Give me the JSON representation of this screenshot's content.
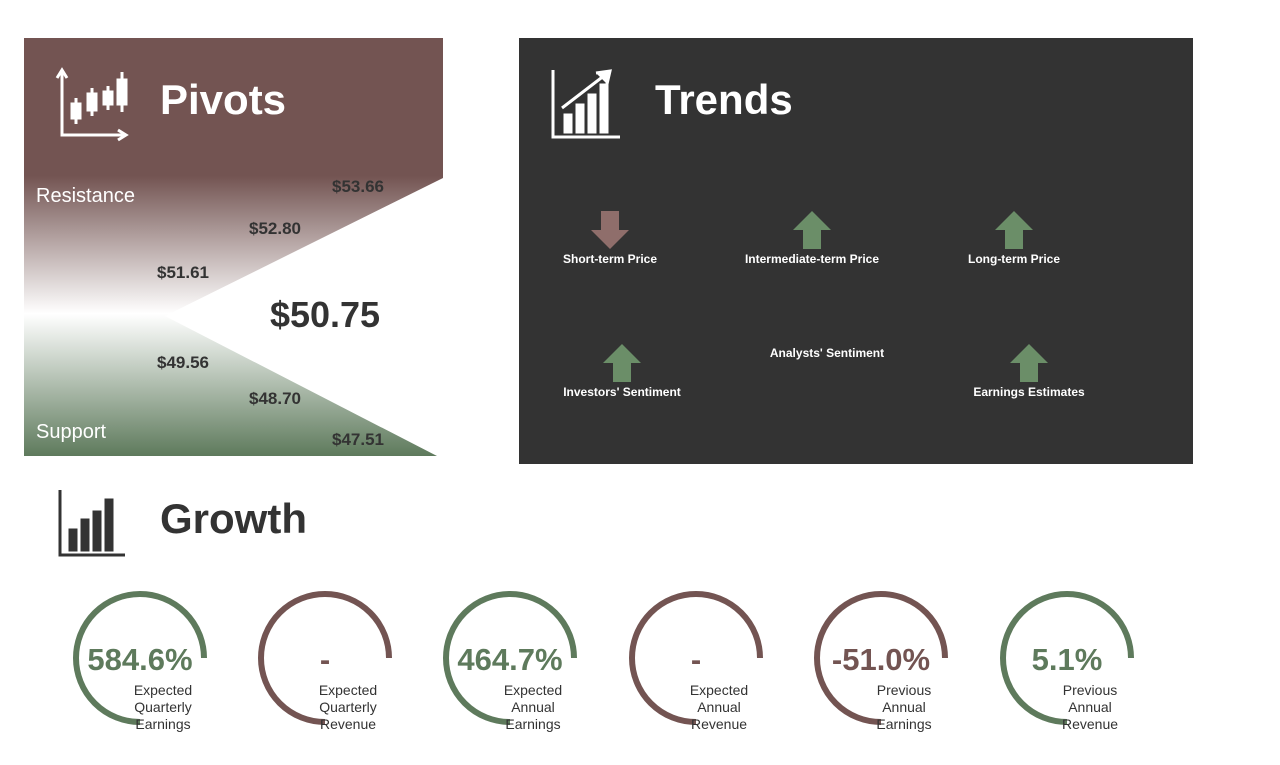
{
  "pivots": {
    "title": "Pivots",
    "resistance_label": "Resistance",
    "support_label": "Support",
    "resistance": [
      "$53.66",
      "$52.80",
      "$51.61"
    ],
    "current": "$50.75",
    "support": [
      "$49.56",
      "$48.70",
      "$47.51"
    ]
  },
  "trends": {
    "title": "Trends",
    "items": [
      {
        "label": "Short-term Price",
        "direction": "down"
      },
      {
        "label": "Intermediate-term Price",
        "direction": "up"
      },
      {
        "label": "Long-term Price",
        "direction": "up"
      },
      {
        "label": "Investors' Sentiment",
        "direction": "up"
      },
      {
        "label": "Analysts' Sentiment",
        "direction": "none"
      },
      {
        "label": "Earnings Estimates",
        "direction": "up"
      }
    ]
  },
  "growth": {
    "title": "Growth",
    "gauges": [
      {
        "value": "584.6%",
        "label": "Expected Quarterly Earnings",
        "tone": "positive"
      },
      {
        "value": "-",
        "label": "Expected Quarterly Revenue",
        "tone": "negative"
      },
      {
        "value": "464.7%",
        "label": "Expected Annual Earnings",
        "tone": "positive"
      },
      {
        "value": "-",
        "label": "Expected Annual Revenue",
        "tone": "negative"
      },
      {
        "value": "-51.0%",
        "label": "Previous Annual Earnings",
        "tone": "negative"
      },
      {
        "value": "5.1%",
        "label": "Previous Annual Revenue",
        "tone": "positive"
      }
    ]
  }
}
